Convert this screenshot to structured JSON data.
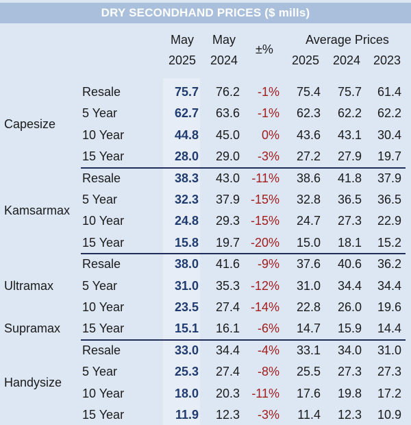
{
  "chart_data": {
    "type": "table",
    "title": "DRY SECONDHAND PRICES ($ mills)",
    "columns": {
      "may2025": [
        "May",
        "2025"
      ],
      "may2024": [
        "May",
        "2024"
      ],
      "change": "±%",
      "average_label": "Average Prices",
      "avg_years": [
        "2025",
        "2024",
        "2023"
      ]
    },
    "groups": [
      {
        "category": "Capesize",
        "rows": [
          {
            "term": "Resale",
            "may2025": "75.7",
            "may2024": "76.2",
            "change": "-1%",
            "avg2025": "75.4",
            "avg2024": "75.7",
            "avg2023": "61.4"
          },
          {
            "term": "5 Year",
            "may2025": "62.7",
            "may2024": "63.6",
            "change": "-1%",
            "avg2025": "62.3",
            "avg2024": "62.2",
            "avg2023": "62.2"
          },
          {
            "term": "10 Year",
            "may2025": "44.8",
            "may2024": "45.0",
            "change": "0%",
            "avg2025": "43.6",
            "avg2024": "43.1",
            "avg2023": "30.4"
          },
          {
            "term": "15 Year",
            "may2025": "28.0",
            "may2024": "29.0",
            "change": "-3%",
            "avg2025": "27.2",
            "avg2024": "27.9",
            "avg2023": "19.7"
          }
        ]
      },
      {
        "category": "Kamsarmax",
        "rows": [
          {
            "term": "Resale",
            "may2025": "38.3",
            "may2024": "43.0",
            "change": "-11%",
            "avg2025": "38.6",
            "avg2024": "41.8",
            "avg2023": "37.9"
          },
          {
            "term": "5 Year",
            "may2025": "32.3",
            "may2024": "37.9",
            "change": "-15%",
            "avg2025": "32.8",
            "avg2024": "36.5",
            "avg2023": "36.5"
          },
          {
            "term": "10 Year",
            "may2025": "24.8",
            "may2024": "29.3",
            "change": "-15%",
            "avg2025": "24.7",
            "avg2024": "27.3",
            "avg2023": "22.9"
          },
          {
            "term": "15 Year",
            "may2025": "15.8",
            "may2024": "19.7",
            "change": "-20%",
            "avg2025": "15.0",
            "avg2024": "18.1",
            "avg2023": "15.2"
          }
        ]
      },
      {
        "category": "Ultramax",
        "category2": "Supramax",
        "rows": [
          {
            "term": "Resale",
            "may2025": "38.0",
            "may2024": "41.6",
            "change": "-9%",
            "avg2025": "37.6",
            "avg2024": "40.6",
            "avg2023": "36.2"
          },
          {
            "term": "5 Year",
            "may2025": "31.0",
            "may2024": "35.3",
            "change": "-12%",
            "avg2025": "31.0",
            "avg2024": "34.4",
            "avg2023": "34.4"
          },
          {
            "term": "10 Year",
            "may2025": "23.5",
            "may2024": "27.4",
            "change": "-14%",
            "avg2025": "22.8",
            "avg2024": "26.0",
            "avg2023": "19.6"
          },
          {
            "term": "15 Year",
            "may2025": "15.1",
            "may2024": "16.1",
            "change": "-6%",
            "avg2025": "14.7",
            "avg2024": "15.9",
            "avg2023": "14.4"
          }
        ]
      },
      {
        "category": "Handysize",
        "rows": [
          {
            "term": "Resale",
            "may2025": "33.0",
            "may2024": "34.4",
            "change": "-4%",
            "avg2025": "33.1",
            "avg2024": "34.0",
            "avg2023": "31.0"
          },
          {
            "term": "5 Year",
            "may2025": "25.3",
            "may2024": "27.4",
            "change": "-8%",
            "avg2025": "25.5",
            "avg2024": "27.3",
            "avg2023": "27.3"
          },
          {
            "term": "10 Year",
            "may2025": "18.0",
            "may2024": "20.3",
            "change": "-11%",
            "avg2025": "17.6",
            "avg2024": "19.8",
            "avg2023": "17.2"
          },
          {
            "term": "15 Year",
            "may2025": "11.9",
            "may2024": "12.3",
            "change": "-3%",
            "avg2025": "11.4",
            "avg2024": "12.3",
            "avg2023": "10.9"
          }
        ]
      }
    ]
  }
}
